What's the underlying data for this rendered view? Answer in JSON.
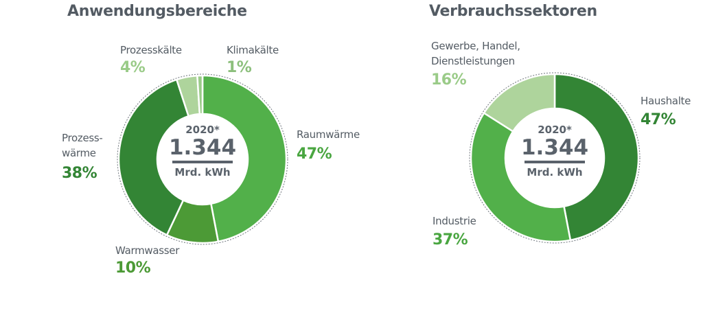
{
  "left_chart": {
    "title": "Anwendungsbereiche",
    "center": {
      "year": "2020*",
      "value": "1.344",
      "unit": "Mrd. kWh"
    },
    "labels": {
      "prozesskaelte": {
        "name": "Prozesskälte",
        "pct": "4%"
      },
      "klimakaelte": {
        "name": "Klimakälte",
        "pct": "1%"
      },
      "raumwaerme": {
        "name": "Raumwärme",
        "pct": "47%"
      },
      "prozesswaerme_1": {
        "name": "Prozess-",
        "pct": "38%"
      },
      "prozesswaerme_2": {
        "name": "wärme"
      },
      "warmwasser": {
        "name": "Warmwasser",
        "pct": "10%"
      }
    }
  },
  "right_chart": {
    "title": "Verbrauchssektoren",
    "center": {
      "year": "2020*",
      "value": "1.344",
      "unit": "Mrd. kWh"
    },
    "labels": {
      "ghd_1": {
        "name": "Gewerbe, Handel,"
      },
      "ghd_2": {
        "name": "Dienstleistungen",
        "pct": "16%"
      },
      "haushalte": {
        "name": "Haushalte",
        "pct": "47%"
      },
      "industrie": {
        "name": "Industrie",
        "pct": "37%"
      }
    }
  },
  "colors": {
    "text": "#535b63",
    "raumwaerme": "#52b04a",
    "warmwasser": "#4c9a36",
    "prozesswaerme": "#338535",
    "prozesskaelte": "#aed49c",
    "klimakaelte": "#9acb88",
    "haushalte": "#338535",
    "industrie": "#52b04a",
    "ghd": "#aed49c"
  },
  "chart_data": [
    {
      "type": "pie",
      "title": "Anwendungsbereiche",
      "subtitle": "2020* 1.344 Mrd. kWh",
      "categories": [
        "Raumwärme",
        "Warmwasser",
        "Prozesswärme",
        "Prozesskälte",
        "Klimakälte"
      ],
      "values": [
        47,
        10,
        38,
        4,
        1
      ],
      "unit": "%",
      "donut": true,
      "total": "1.344 Mrd. kWh",
      "year": "2020*"
    },
    {
      "type": "pie",
      "title": "Verbrauchssektoren",
      "subtitle": "2020* 1.344 Mrd. kWh",
      "categories": [
        "Haushalte",
        "Industrie",
        "Gewerbe, Handel, Dienstleistungen"
      ],
      "values": [
        47,
        37,
        16
      ],
      "unit": "%",
      "donut": true,
      "total": "1.344 Mrd. kWh",
      "year": "2020*"
    }
  ]
}
